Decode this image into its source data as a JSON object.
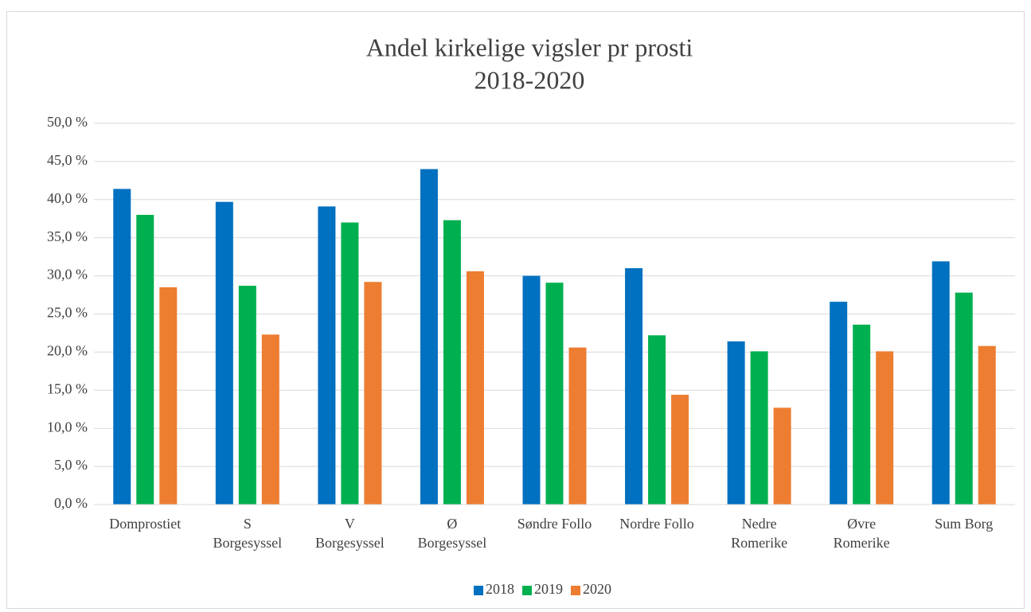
{
  "chart_data": {
    "type": "bar",
    "title": "Andel kirkelige vigsler pr prosti",
    "subtitle": "2018-2020",
    "categories": [
      "Domprostiet",
      "S\nBorgesyssel",
      "V\nBorgesyssel",
      "Ø\nBorgesyssel",
      "Søndre Follo",
      "Nordre Follo",
      "Nedre\nRomerike",
      "Øvre\nRomerike",
      "Sum Borg"
    ],
    "series": [
      {
        "name": "2018",
        "color": "#0070c0",
        "values": [
          41.4,
          39.7,
          39.1,
          44.0,
          30.0,
          31.0,
          21.4,
          26.6,
          31.9
        ]
      },
      {
        "name": "2019",
        "color": "#00b050",
        "values": [
          38.0,
          28.7,
          37.0,
          37.3,
          29.1,
          22.2,
          20.1,
          23.6,
          27.8
        ]
      },
      {
        "name": "2020",
        "color": "#ed7d31",
        "values": [
          28.5,
          22.3,
          29.2,
          30.6,
          20.6,
          14.4,
          12.7,
          20.1,
          20.8
        ]
      }
    ],
    "ylim": [
      0,
      50
    ],
    "yticks": [
      {
        "value": 0,
        "label": "0,0 %"
      },
      {
        "value": 5,
        "label": "5,0 %"
      },
      {
        "value": 10,
        "label": "10,0 %"
      },
      {
        "value": 15,
        "label": "15,0 %"
      },
      {
        "value": 20,
        "label": "20,0 %"
      },
      {
        "value": 25,
        "label": "25,0 %"
      },
      {
        "value": 30,
        "label": "30,0 %"
      },
      {
        "value": 35,
        "label": "35,0 %"
      },
      {
        "value": 40,
        "label": "40,0 %"
      },
      {
        "value": 45,
        "label": "45,0 %"
      },
      {
        "value": 50,
        "label": "50,0 %"
      }
    ],
    "grid": true,
    "legend": "bottom"
  }
}
